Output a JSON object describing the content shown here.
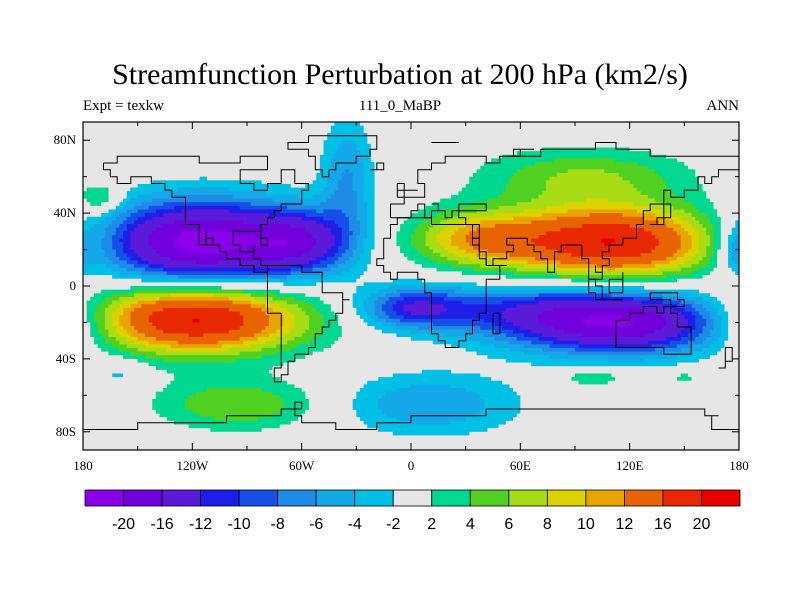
{
  "chart_data": {
    "type": "heatmap",
    "title": "Streamfunction Perturbation at 200 hPa (km2/s)",
    "left_label": "Expt = texkw",
    "center_label": "111_0_MaBP",
    "right_label": "ANN",
    "x_ticks": [
      {
        "value": -180,
        "label": "180"
      },
      {
        "value": -120,
        "label": "120W"
      },
      {
        "value": -60,
        "label": "60W"
      },
      {
        "value": 0,
        "label": "0"
      },
      {
        "value": 60,
        "label": "60E"
      },
      {
        "value": 120,
        "label": "120E"
      },
      {
        "value": 180,
        "label": "180"
      }
    ],
    "y_ticks": [
      {
        "value": 80,
        "label": "80N"
      },
      {
        "value": 40,
        "label": "40N"
      },
      {
        "value": 0,
        "label": "0"
      },
      {
        "value": -40,
        "label": "40S"
      },
      {
        "value": -80,
        "label": "80S"
      }
    ],
    "xlim": [
      -180,
      180
    ],
    "ylim": [
      -90,
      90
    ],
    "colorbar": {
      "levels": [
        "-20",
        "-16",
        "-12",
        "-10",
        "-8",
        "-6",
        "-4",
        "-2",
        "2",
        "4",
        "6",
        "8",
        "10",
        "12",
        "16",
        "20"
      ],
      "colors": [
        "#8a00e8",
        "#7200dc",
        "#5a1ad8",
        "#1e1ee8",
        "#1450e8",
        "#1e8ce6",
        "#14a8e8",
        "#00c0e6",
        "#e6e6e6",
        "#00d890",
        "#50d020",
        "#a8dc14",
        "#dcd200",
        "#e8a400",
        "#e86400",
        "#e82800",
        "#e60000"
      ]
    },
    "features": [
      {
        "lon": -115,
        "lat": 24,
        "value": -22,
        "sx": 40,
        "sy": 16
      },
      {
        "lon": -60,
        "lat": 24,
        "value": -10,
        "sx": 18,
        "sy": 12
      },
      {
        "lon": -35,
        "lat": 58,
        "value": -6,
        "sx": 10,
        "sy": 24
      },
      {
        "lon": -120,
        "lat": -18,
        "value": 21,
        "sx": 42,
        "sy": 13
      },
      {
        "lon": -95,
        "lat": -65,
        "value": 6,
        "sx": 32,
        "sy": 10
      },
      {
        "lon": -160,
        "lat": -48,
        "value": -3,
        "sx": 10,
        "sy": 6
      },
      {
        "lon": -170,
        "lat": 48,
        "value": 5,
        "sx": 8,
        "sy": 6
      },
      {
        "lon": 110,
        "lat": 24,
        "value": 20,
        "sx": 42,
        "sy": 14
      },
      {
        "lon": 35,
        "lat": 26,
        "value": 9,
        "sx": 26,
        "sy": 11
      },
      {
        "lon": 95,
        "lat": 60,
        "value": 6,
        "sx": 40,
        "sy": 11
      },
      {
        "lon": 115,
        "lat": -20,
        "value": -20,
        "sx": 44,
        "sy": 12
      },
      {
        "lon": 0,
        "lat": -12,
        "value": -10,
        "sx": 20,
        "sy": 8
      },
      {
        "lon": 50,
        "lat": -12,
        "value": -6,
        "sx": 38,
        "sy": 10
      },
      {
        "lon": 10,
        "lat": -65,
        "value": -6,
        "sx": 34,
        "sy": 12
      },
      {
        "lon": 100,
        "lat": -50,
        "value": 4,
        "sx": 14,
        "sy": 4
      },
      {
        "lon": 150,
        "lat": -50,
        "value": 3,
        "sx": 7,
        "sy": 3
      },
      {
        "lon": 178,
        "lat": 20,
        "value": -5,
        "sx": 6,
        "sy": 10
      }
    ]
  }
}
